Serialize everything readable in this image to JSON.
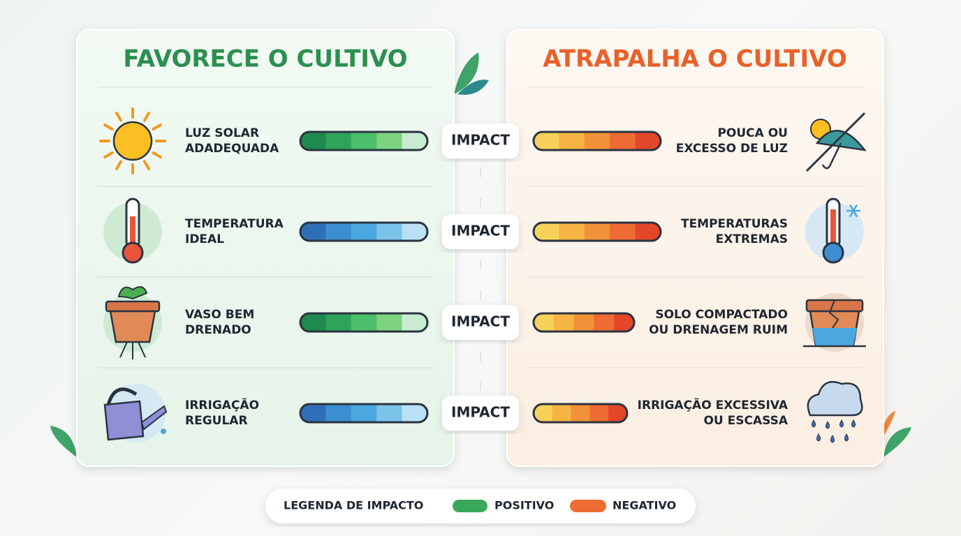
{
  "left": {
    "title": "FAVORECE O CULTIVO",
    "items": [
      [
        "LUZ SOLAR",
        "ADADEQUADA"
      ],
      [
        "TEMPERATURA",
        "IDEAL"
      ],
      [
        "VASO BEM",
        "DRENADO"
      ],
      [
        "IRRIGAÇÃO",
        "REGULAR"
      ]
    ]
  },
  "right": {
    "title": "ATRAPALHA O CULTIVO",
    "items": [
      [
        "POUCA OU",
        "EXCESSO DE LUZ"
      ],
      [
        "TEMPERATURAS",
        "EXTREMAS"
      ],
      [
        "SOLO COMPACTADO",
        "OU DRENAGEM RUIM"
      ],
      [
        "IRRIGAÇÃO EXCESSIVA",
        "OU ESCASSA"
      ]
    ]
  },
  "impact_labels": [
    "IMPACT",
    "IMPACT",
    "IMPACT",
    "IMPACT"
  ],
  "legend": {
    "title": "LEGENDA DE IMPACTO",
    "positive": "POSITIVO",
    "negative": "NEGATIVO"
  }
}
